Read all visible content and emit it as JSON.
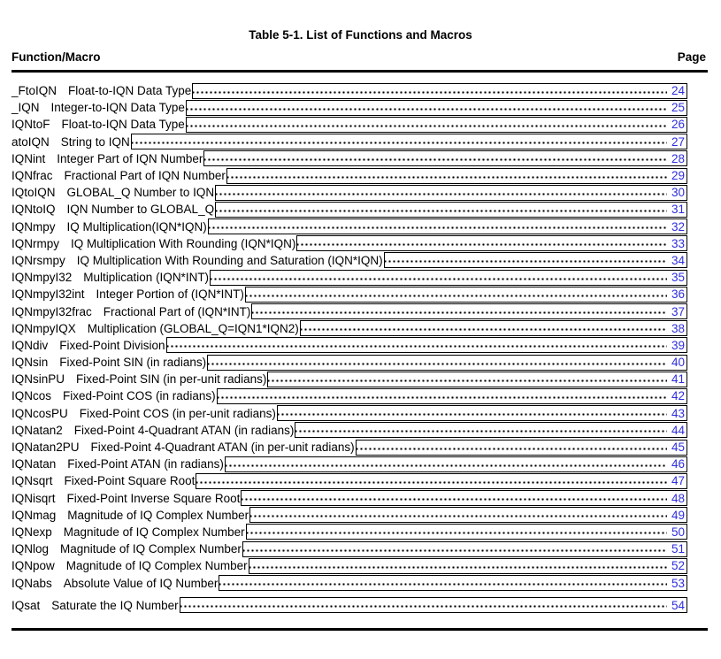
{
  "document": {
    "title": "Table 5-1. List of Functions and Macros",
    "header": {
      "left": "Function/Macro",
      "right": "Page"
    }
  },
  "colors": {
    "link_blue": "#2d2ddf",
    "rule_black": "#000000",
    "background": "#ffffff"
  },
  "entries": [
    {
      "name": "_FtoIQN",
      "description": "Float-to-IQN Data Type",
      "page": "24"
    },
    {
      "name": "_IQN",
      "description": "Integer-to-IQN Data Type",
      "page": "25"
    },
    {
      "name": "IQNtoF",
      "description": "Float-to-IQN Data Type",
      "page": "26"
    },
    {
      "name": "atoIQN",
      "description": "String to IQN",
      "page": "27"
    },
    {
      "name": "IQNint",
      "description": "Integer Part of IQN Number",
      "page": "28"
    },
    {
      "name": "IQNfrac",
      "description": "Fractional Part of IQN Number",
      "page": "29"
    },
    {
      "name": "IQtoIQN",
      "description": "GLOBAL_Q Number to IQN",
      "page": "30"
    },
    {
      "name": "IQNtoIQ",
      "description": "IQN Number to GLOBAL_Q",
      "page": "31"
    },
    {
      "name": "IQNmpy",
      "description": "IQ Multiplication(IQN*IQN)",
      "page": "32"
    },
    {
      "name": "IQNrmpy",
      "description": "IQ Multiplication With Rounding (IQN*IQN)",
      "page": "33"
    },
    {
      "name": "IQNrsmpy",
      "description": "IQ Multiplication With Rounding and Saturation (IQN*IQN)",
      "page": "34"
    },
    {
      "name": "IQNmpyI32",
      "description": "Multiplication (IQN*INT)",
      "page": "35"
    },
    {
      "name": "IQNmpyI32int",
      "description": "Integer Portion of (IQN*INT)",
      "page": "36"
    },
    {
      "name": "IQNmpyI32frac",
      "description": "Fractional Part of (IQN*INT)",
      "page": "37"
    },
    {
      "name": "IQNmpyIQX",
      "description": "Multiplication (GLOBAL_Q=IQN1*IQN2)",
      "page": "38"
    },
    {
      "name": "IQNdiv",
      "description": "Fixed-Point Division",
      "page": "39"
    },
    {
      "name": "IQNsin",
      "description": "Fixed-Point SIN (in radians)",
      "page": "40"
    },
    {
      "name": "IQNsinPU",
      "description": "Fixed-Point SIN (in per-unit radians)",
      "page": "41"
    },
    {
      "name": "IQNcos",
      "description": "Fixed-Point COS (in radians)",
      "page": "42"
    },
    {
      "name": "IQNcosPU",
      "description": "Fixed-Point COS (in per-unit radians)",
      "page": "43"
    },
    {
      "name": "IQNatan2",
      "description": "Fixed-Point 4-Quadrant ATAN (in radians)",
      "page": "44"
    },
    {
      "name": "IQNatan2PU",
      "description": "Fixed-Point 4-Quadrant ATAN (in per-unit radians)",
      "page": "45"
    },
    {
      "name": "IQNatan",
      "description": "Fixed-Point ATAN (in radians)",
      "page": "46"
    },
    {
      "name": "IQNsqrt",
      "description": "Fixed-Point Square Root",
      "page": "47"
    },
    {
      "name": "IQNisqrt",
      "description": "Fixed-Point Inverse Square Root",
      "page": "48"
    },
    {
      "name": "IQNmag",
      "description": "Magnitude of IQ Complex Number",
      "page": "49"
    },
    {
      "name": "IQNexp",
      "description": "Magnitude of IQ Complex Number",
      "page": "50"
    },
    {
      "name": "IQNlog",
      "description": "Magnitude of IQ Complex Number",
      "page": "51"
    },
    {
      "name": "IQNpow",
      "description": "Magnitude of IQ Complex Number",
      "page": "52"
    },
    {
      "name": "IQNabs",
      "description": "Absolute Value of IQ Number",
      "page": "53"
    },
    {
      "name": "IQsat",
      "description": "Saturate the IQ Number",
      "page": "54"
    }
  ]
}
